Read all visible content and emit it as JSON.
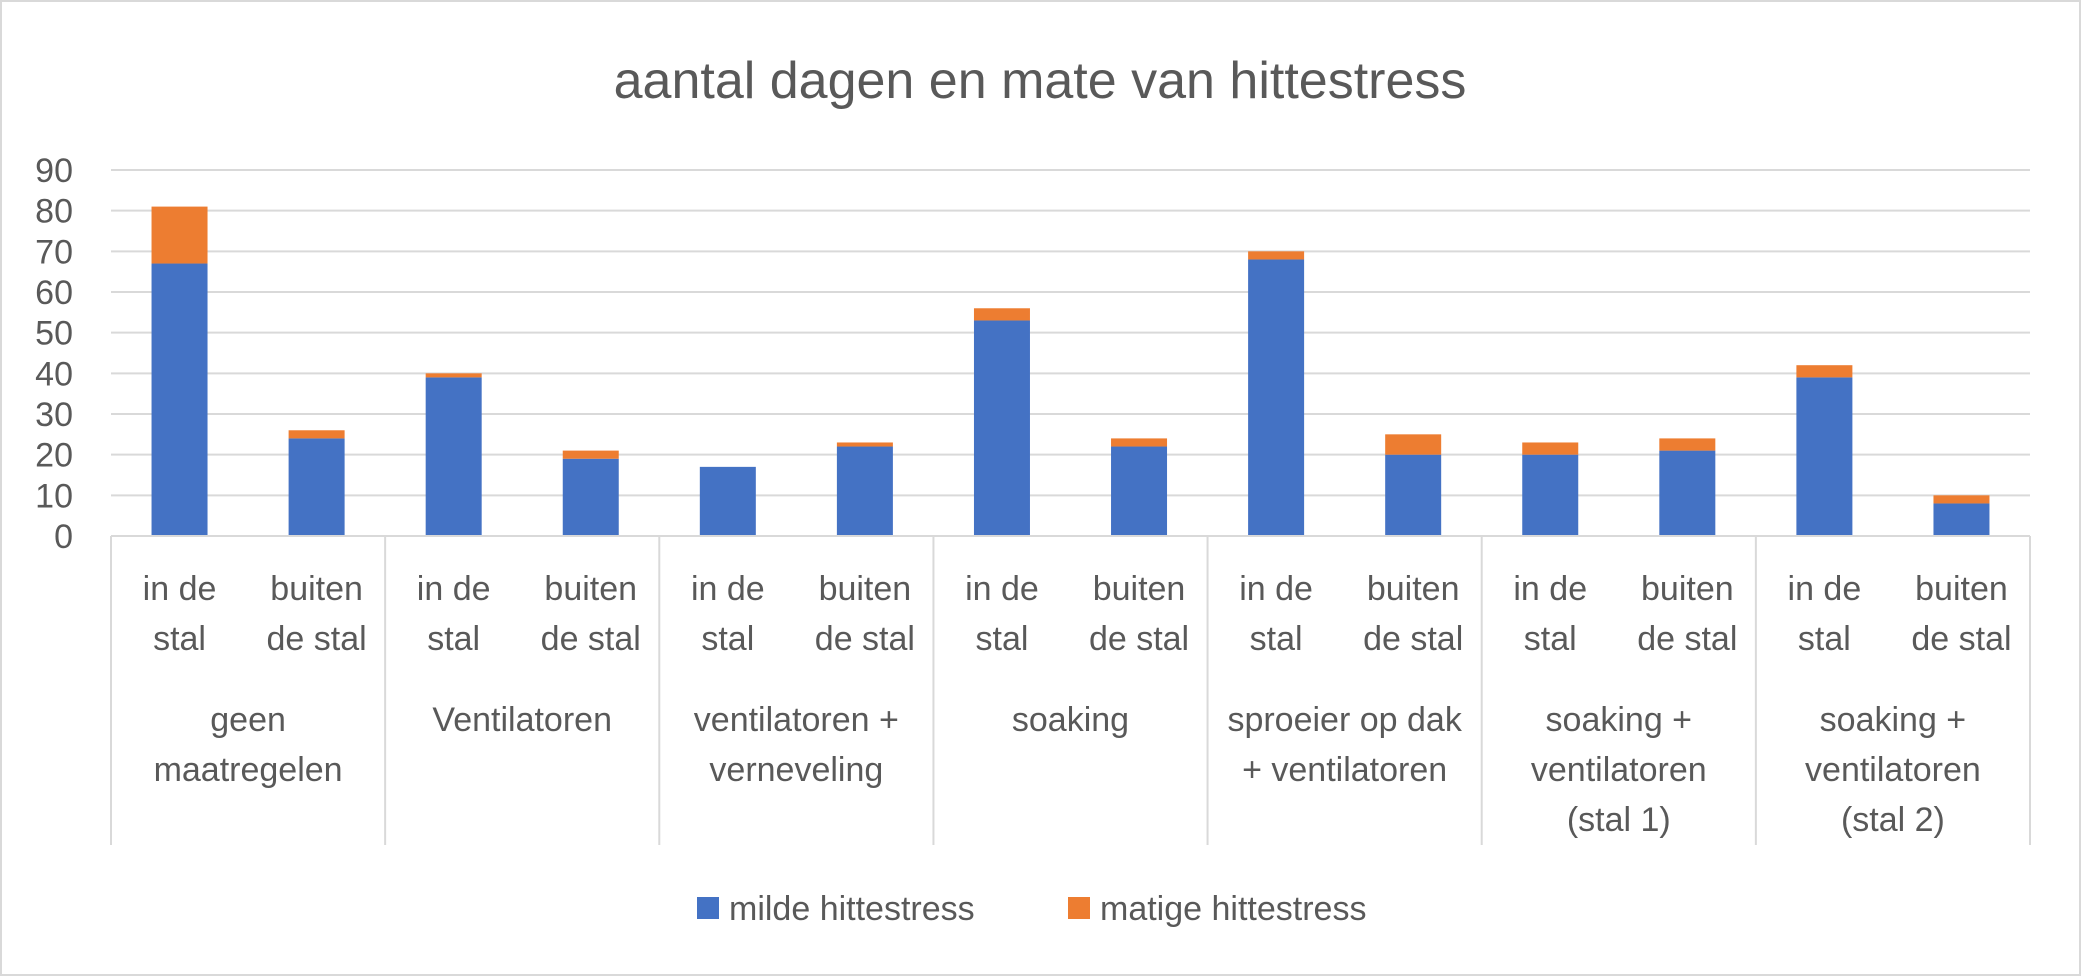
{
  "chart_data": {
    "type": "bar",
    "stacked": true,
    "title": "aantal dagen en mate van hittestress",
    "xlabel": "",
    "ylabel": "",
    "ylim": [
      0,
      90
    ],
    "yticks": [
      0,
      10,
      20,
      30,
      40,
      50,
      60,
      70,
      80,
      90
    ],
    "grid": true,
    "legend_position": "bottom",
    "groups": [
      {
        "label_lines": [
          "geen",
          "maatregelen"
        ]
      },
      {
        "label_lines": [
          "Ventilatoren"
        ]
      },
      {
        "label_lines": [
          "ventilatoren +",
          "verneveling"
        ]
      },
      {
        "label_lines": [
          "soaking"
        ]
      },
      {
        "label_lines": [
          "sproeier op dak",
          "+ ventilatoren"
        ]
      },
      {
        "label_lines": [
          "soaking +",
          "ventilatoren",
          "(stal 1)"
        ]
      },
      {
        "label_lines": [
          "soaking +",
          "ventilatoren",
          "(stal 2)"
        ]
      }
    ],
    "subcategories": [
      {
        "label_lines": [
          "in de",
          "stal"
        ]
      },
      {
        "label_lines": [
          "buiten",
          "de stal"
        ]
      }
    ],
    "series": [
      {
        "name": "milde hittestress",
        "color": "#4472C4",
        "values": [
          67,
          24,
          39,
          19,
          17,
          22,
          53,
          22,
          68,
          20,
          20,
          21,
          39,
          8
        ]
      },
      {
        "name": "matige hittestress",
        "color": "#ED7D31",
        "values": [
          14,
          2,
          1,
          2,
          0,
          1,
          3,
          2,
          2,
          5,
          3,
          3,
          3,
          2
        ]
      }
    ]
  }
}
